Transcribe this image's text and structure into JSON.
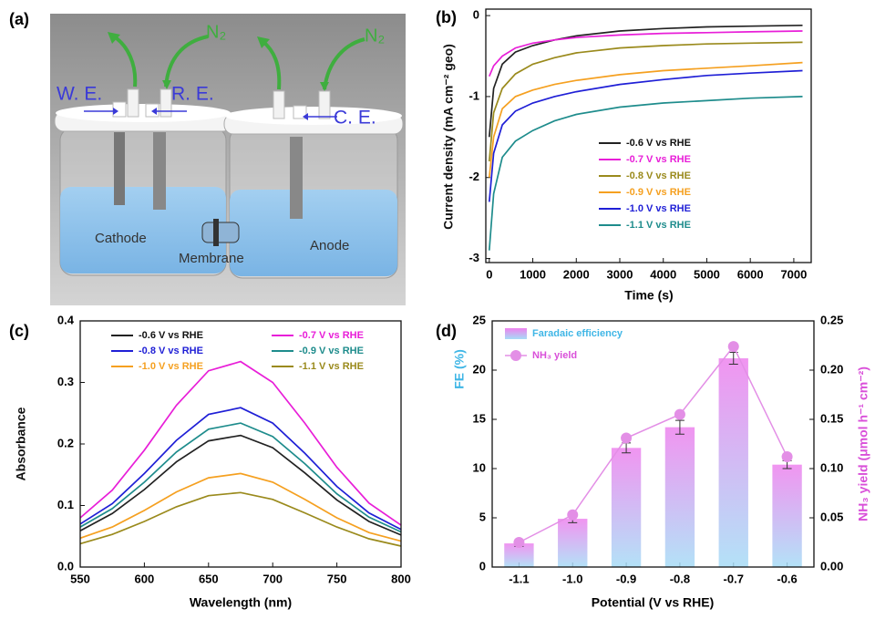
{
  "diagram": {
    "panel_label": "(a)",
    "working_electrode": "W. E.",
    "reference_electrode": "R. E.",
    "counter_electrode": "C. E.",
    "gas_left": "N₂",
    "gas_right": "N₂",
    "cathode": "Cathode",
    "membrane": "Membrane",
    "anode": "Anode"
  },
  "chart_data": [
    {
      "type": "line",
      "panel_label": "(b)",
      "x_label": "Time (s)",
      "y_label": "Current density (mA cm⁻² geo)",
      "x": [
        0,
        100,
        300,
        600,
        1000,
        1500,
        2000,
        3000,
        4000,
        5000,
        6000,
        7200
      ],
      "xlim": [
        -80,
        7400
      ],
      "xticks": [
        0,
        1000,
        2000,
        3000,
        4000,
        5000,
        6000,
        7000
      ],
      "ylim": [
        -3.05,
        0.08
      ],
      "yticks": [
        -3,
        -2,
        -1,
        0
      ],
      "series": [
        {
          "name": "-0.6 V vs RHE",
          "color": "#222222",
          "values": [
            -1.5,
            -0.9,
            -0.6,
            -0.45,
            -0.37,
            -0.3,
            -0.25,
            -0.19,
            -0.16,
            -0.14,
            -0.13,
            -0.12
          ]
        },
        {
          "name": "-0.7 V vs RHE",
          "color": "#e81ed8",
          "values": [
            -0.75,
            -0.62,
            -0.5,
            -0.4,
            -0.34,
            -0.3,
            -0.27,
            -0.24,
            -0.22,
            -0.21,
            -0.2,
            -0.19
          ]
        },
        {
          "name": "-0.8 V vs RHE",
          "color": "#9a8a1c",
          "values": [
            -1.8,
            -1.2,
            -0.9,
            -0.72,
            -0.6,
            -0.52,
            -0.46,
            -0.4,
            -0.37,
            -0.35,
            -0.34,
            -0.33
          ]
        },
        {
          "name": "-0.9 V vs RHE",
          "color": "#f5a020",
          "values": [
            -2.0,
            -1.5,
            -1.15,
            -1.0,
            -0.92,
            -0.85,
            -0.8,
            -0.73,
            -0.68,
            -0.65,
            -0.62,
            -0.58
          ]
        },
        {
          "name": "-1.0 V vs RHE",
          "color": "#1f1fd6",
          "values": [
            -2.3,
            -1.7,
            -1.35,
            -1.18,
            -1.08,
            -1.0,
            -0.94,
            -0.85,
            -0.79,
            -0.74,
            -0.71,
            -0.68
          ]
        },
        {
          "name": "-1.1 V vs RHE",
          "color": "#1e8c8c",
          "values": [
            -2.9,
            -2.2,
            -1.75,
            -1.55,
            -1.42,
            -1.3,
            -1.22,
            -1.13,
            -1.08,
            -1.05,
            -1.02,
            -1.0
          ]
        }
      ]
    },
    {
      "type": "line",
      "panel_label": "(c)",
      "x_label": "Wavelength (nm)",
      "y_label": "Absorbance",
      "x": [
        550,
        575,
        600,
        625,
        650,
        675,
        700,
        725,
        750,
        775,
        800
      ],
      "xlim": [
        550,
        800
      ],
      "xticks": [
        550,
        600,
        650,
        700,
        750,
        800
      ],
      "ylim": [
        0,
        0.4
      ],
      "yticks": [
        {
          "value": 0,
          "label": "0.0"
        },
        0.1,
        0.2,
        0.3,
        0.4
      ],
      "series": [
        {
          "name": "-0.6 V vs RHE",
          "color": "#222222",
          "values": [
            0.059,
            0.087,
            0.126,
            0.171,
            0.205,
            0.214,
            0.194,
            0.153,
            0.109,
            0.074,
            0.052
          ]
        },
        {
          "name": "-0.7 V vs RHE",
          "color": "#e81ed8",
          "values": [
            0.08,
            0.125,
            0.19,
            0.263,
            0.319,
            0.334,
            0.3,
            0.234,
            0.162,
            0.104,
            0.068
          ]
        },
        {
          "name": "-0.8 V vs RHE",
          "color": "#1f1fd6",
          "values": [
            0.07,
            0.103,
            0.152,
            0.206,
            0.248,
            0.259,
            0.234,
            0.185,
            0.131,
            0.088,
            0.061
          ]
        },
        {
          "name": "-0.9 V vs RHE",
          "color": "#1e8c8c",
          "values": [
            0.065,
            0.095,
            0.138,
            0.187,
            0.224,
            0.234,
            0.212,
            0.168,
            0.119,
            0.081,
            0.057
          ]
        },
        {
          "name": "-1.0 V vs RHE",
          "color": "#f5a020",
          "values": [
            0.047,
            0.065,
            0.092,
            0.122,
            0.145,
            0.152,
            0.138,
            0.11,
            0.08,
            0.056,
            0.042
          ]
        },
        {
          "name": "-1.1 V vs RHE",
          "color": "#9a8a1c",
          "values": [
            0.038,
            0.053,
            0.074,
            0.098,
            0.116,
            0.121,
            0.11,
            0.088,
            0.065,
            0.046,
            0.034
          ]
        }
      ]
    },
    {
      "type": "bar",
      "panel_label": "(d)",
      "x_label": "Potential (V vs RHE)",
      "y_label": "FE (%)",
      "y2_label": "NH₃ yield (μmol h⁻¹ cm⁻²)",
      "y_label_color": "#3fb6e6",
      "y2_label_color": "#d94fd9",
      "categories": [
        "-1.1",
        "-1.0",
        "-0.9",
        "-0.8",
        "-0.7",
        "-0.6"
      ],
      "ylim": [
        0,
        25
      ],
      "yticks": [
        0,
        5,
        10,
        15,
        20,
        25
      ],
      "y2lim": [
        0,
        0.25
      ],
      "y2ticks": [
        {
          "value": 0,
          "label": "0.00"
        },
        0.05,
        {
          "value": 0.1,
          "label": "0.10"
        },
        0.15,
        {
          "value": 0.2,
          "label": "0.20"
        },
        0.25
      ],
      "series": [
        {
          "name": "Faradaic efficiency",
          "type": "bar",
          "gradient": [
            "#ee82ee",
            "#a6dcf6"
          ],
          "values": [
            2.4,
            4.9,
            12.1,
            14.2,
            21.2,
            10.4
          ],
          "errors": [
            0.3,
            0.4,
            0.5,
            0.7,
            0.6,
            0.4
          ]
        },
        {
          "name": "NH₃ yield",
          "type": "line",
          "axis": "y2",
          "color": "#e38fe6",
          "values": [
            0.025,
            0.053,
            0.131,
            0.155,
            0.224,
            0.112
          ]
        }
      ]
    }
  ]
}
